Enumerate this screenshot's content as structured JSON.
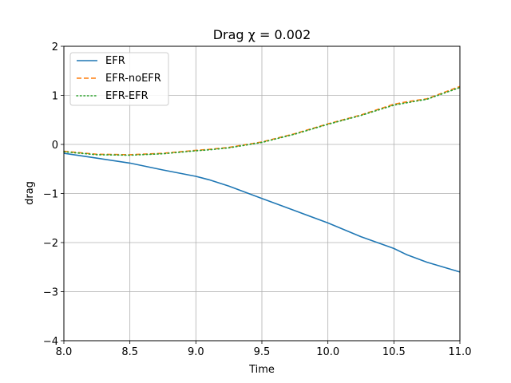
{
  "chart_data": {
    "type": "line",
    "title": "Drag χ = 0.002",
    "xlabel": "Time",
    "ylabel": "drag",
    "xlim": [
      8.0,
      11.0
    ],
    "ylim": [
      -4,
      2
    ],
    "xticks": [
      8.0,
      8.5,
      9.0,
      9.5,
      10.0,
      10.5,
      11.0
    ],
    "xtick_labels": [
      "8.0",
      "8.5",
      "9.0",
      "9.5",
      "10.0",
      "10.5",
      "11.0"
    ],
    "yticks": [
      -4,
      -3,
      -2,
      -1,
      0,
      1,
      2
    ],
    "ytick_labels": [
      "−4",
      "−3",
      "−2",
      "−1",
      "0",
      "1",
      "2"
    ],
    "grid": true,
    "legend_position": "top-left",
    "x": [
      8.0,
      8.25,
      8.5,
      8.75,
      9.0,
      9.1,
      9.25,
      9.5,
      9.75,
      10.0,
      10.25,
      10.5,
      10.6,
      10.75,
      11.0
    ],
    "series": [
      {
        "name": "EFR",
        "color": "#1f77b4",
        "style": "solid",
        "values": [
          -0.18,
          -0.28,
          -0.38,
          -0.52,
          -0.65,
          -0.72,
          -0.85,
          -1.1,
          -1.35,
          -1.6,
          -1.88,
          -2.12,
          -2.25,
          -2.4,
          -2.6
        ]
      },
      {
        "name": "EFR-noEFR",
        "color": "#ff7f0e",
        "style": "dashed",
        "values": [
          -0.14,
          -0.2,
          -0.21,
          -0.18,
          -0.12,
          -0.1,
          -0.06,
          0.05,
          0.22,
          0.42,
          0.6,
          0.82,
          0.87,
          0.93,
          1.18
        ]
      },
      {
        "name": "EFR-EFR",
        "color": "#2ca02c",
        "style": "dotted",
        "values": [
          -0.15,
          -0.21,
          -0.22,
          -0.19,
          -0.13,
          -0.11,
          -0.07,
          0.04,
          0.21,
          0.41,
          0.59,
          0.8,
          0.85,
          0.92,
          1.16
        ]
      }
    ]
  }
}
